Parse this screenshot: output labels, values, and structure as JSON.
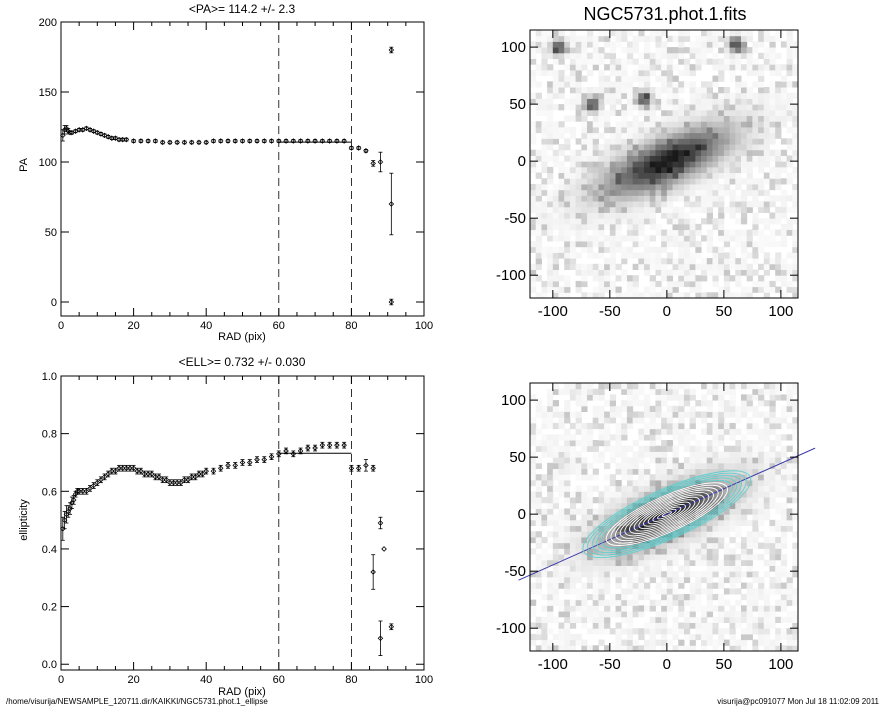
{
  "footer": {
    "path": "/home/visurija/NEWSAMPLE_120711.dir/KAIKKI/NGC5731.phot.1_ellipse",
    "stamp": "visurija@pc091077  Mon Jul 18 11:02:09 2011"
  },
  "chart_data": [
    {
      "type": "scatter",
      "title": "<PA>= 114.2 +/-   2.3",
      "xlabel": "RAD (pix)",
      "ylabel": "PA",
      "xlim": [
        0,
        100
      ],
      "ylim": [
        -10,
        200
      ],
      "xticks": [
        0,
        20,
        40,
        60,
        80,
        100
      ],
      "yticks": [
        0,
        50,
        100,
        150,
        200
      ],
      "vlines": [
        60,
        80
      ],
      "mean_line": {
        "value": 114.2,
        "x_range": [
          60,
          80
        ]
      },
      "series": [
        {
          "x": [
            0.5,
            1,
            1.5,
            2,
            2.5,
            3,
            4,
            5,
            6,
            7,
            8,
            9,
            10,
            11,
            12,
            13,
            14,
            15,
            16,
            17,
            18,
            20,
            22,
            24,
            26,
            28,
            30,
            32,
            34,
            36,
            38,
            40,
            42,
            44,
            46,
            48,
            50,
            52,
            54,
            56,
            58,
            60,
            62,
            64,
            66,
            68,
            70,
            72,
            74,
            76,
            78,
            80,
            82,
            84,
            86,
            88,
            91
          ],
          "y": [
            119,
            123,
            124,
            122,
            121,
            121,
            122,
            123,
            123,
            124,
            123,
            122,
            121,
            120,
            119,
            118,
            117,
            117,
            116,
            116,
            116,
            115,
            115,
            115,
            115,
            114,
            114,
            114,
            114,
            114,
            114,
            114,
            115,
            115,
            115,
            115,
            115,
            115,
            115,
            115,
            115,
            115,
            115,
            115,
            115,
            115,
            115,
            115,
            115,
            115,
            115,
            110,
            110,
            108,
            99,
            100,
            70
          ],
          "err": [
            4,
            3,
            2,
            2,
            1,
            1,
            1,
            1,
            1,
            1,
            1,
            1,
            1,
            1,
            1,
            1,
            1,
            1,
            1,
            1,
            1,
            1,
            1,
            1,
            1,
            1,
            1,
            1,
            1,
            1,
            1,
            1,
            1,
            1,
            1,
            1,
            1,
            1,
            1,
            1,
            1,
            1,
            1,
            1,
            1,
            1,
            1,
            1,
            1,
            1,
            1,
            1,
            1,
            1,
            2,
            7,
            22
          ]
        },
        {
          "x": [
            91,
            91
          ],
          "y": [
            180,
            0
          ],
          "err": [
            2,
            2
          ]
        }
      ]
    },
    {
      "type": "scatter",
      "title": "<ELL>= 0.732 +/-  0.030",
      "xlabel": "RAD (pix)",
      "ylabel": "ellipticity",
      "xlim": [
        0,
        100
      ],
      "ylim": [
        -0.02,
        1.0
      ],
      "xticks": [
        0,
        20,
        40,
        60,
        80,
        100
      ],
      "yticks": [
        0.0,
        0.2,
        0.4,
        0.6,
        0.8,
        1.0
      ],
      "vlines": [
        60,
        80
      ],
      "mean_line": {
        "value": 0.732,
        "x_range": [
          60,
          80
        ]
      },
      "series": [
        {
          "x": [
            0.5,
            1,
            1.5,
            2,
            2.5,
            3,
            3.5,
            4,
            4.5,
            5,
            6,
            7,
            8,
            9,
            10,
            11,
            12,
            13,
            14,
            15,
            16,
            17,
            18,
            19,
            20,
            21,
            22,
            23,
            24,
            25,
            26,
            27,
            28,
            29,
            30,
            31,
            32,
            33,
            34,
            35,
            36,
            37,
            38,
            39,
            40,
            42,
            44,
            46,
            48,
            50,
            52,
            54,
            56,
            58,
            60,
            62,
            64,
            66,
            68,
            70,
            72,
            74,
            76,
            78
          ],
          "y": [
            0.47,
            0.5,
            0.52,
            0.53,
            0.54,
            0.56,
            0.57,
            0.59,
            0.6,
            0.6,
            0.6,
            0.6,
            0.61,
            0.62,
            0.63,
            0.64,
            0.65,
            0.66,
            0.67,
            0.67,
            0.68,
            0.68,
            0.68,
            0.68,
            0.68,
            0.67,
            0.67,
            0.66,
            0.66,
            0.66,
            0.65,
            0.65,
            0.64,
            0.64,
            0.63,
            0.63,
            0.63,
            0.63,
            0.64,
            0.64,
            0.65,
            0.65,
            0.66,
            0.66,
            0.67,
            0.67,
            0.68,
            0.69,
            0.69,
            0.7,
            0.7,
            0.71,
            0.71,
            0.72,
            0.73,
            0.74,
            0.73,
            0.74,
            0.75,
            0.75,
            0.76,
            0.76,
            0.76,
            0.76
          ],
          "err": [
            0.04,
            0.03,
            0.03,
            0.02,
            0.02,
            0.02,
            0.015,
            0.01,
            0.01,
            0.01,
            0.01,
            0.01,
            0.01,
            0.01,
            0.01,
            0.01,
            0.01,
            0.01,
            0.01,
            0.01,
            0.01,
            0.01,
            0.01,
            0.01,
            0.01,
            0.01,
            0.01,
            0.01,
            0.01,
            0.01,
            0.01,
            0.01,
            0.01,
            0.01,
            0.01,
            0.01,
            0.01,
            0.01,
            0.01,
            0.01,
            0.01,
            0.01,
            0.01,
            0.01,
            0.01,
            0.01,
            0.01,
            0.01,
            0.01,
            0.01,
            0.01,
            0.01,
            0.01,
            0.01,
            0.01,
            0.01,
            0.01,
            0.01,
            0.01,
            0.01,
            0.01,
            0.01,
            0.01,
            0.01
          ]
        },
        {
          "x": [
            80,
            82,
            84,
            86,
            88,
            91
          ],
          "y": [
            0.68,
            0.68,
            0.69,
            0.68,
            0.49,
            0.13
          ],
          "err": [
            0.01,
            0.01,
            0.02,
            0.01,
            0.02,
            0.01
          ]
        },
        {
          "x": [
            86,
            88,
            89
          ],
          "y": [
            0.32,
            0.09,
            0.4
          ],
          "err": [
            0.06,
            0.06,
            0.0
          ]
        }
      ]
    },
    {
      "type": "heatmap",
      "title": "NGC5731.phot.1.fits",
      "xlim": [
        -120,
        115
      ],
      "ylim": [
        -120,
        115
      ],
      "xticks": [
        -100,
        -50,
        0,
        50,
        100
      ],
      "yticks": [
        -100,
        -50,
        0,
        50,
        100
      ],
      "galaxy": {
        "pa_deg": 24,
        "major": 75,
        "minor": 25
      },
      "stars": [
        [
          60,
          103
        ],
        [
          -95,
          100
        ],
        [
          -20,
          55
        ],
        [
          -65,
          50
        ]
      ],
      "colormap": "grayscale"
    },
    {
      "type": "heatmap",
      "title": "",
      "xlim": [
        -120,
        115
      ],
      "ylim": [
        -120,
        115
      ],
      "xticks": [
        -100,
        -50,
        0,
        50,
        100
      ],
      "yticks": [
        -100,
        -50,
        0,
        50,
        100
      ],
      "galaxy": {
        "pa_deg": 24,
        "major": 75,
        "minor": 25
      },
      "isophotes": {
        "count": 18,
        "max_sma": 80,
        "ell": 0.73,
        "outer_color": "#5fd0d0",
        "inner_color": "#ffffff"
      },
      "pa_line": {
        "color": "#3a3aa8",
        "angle_deg": 24
      }
    }
  ]
}
